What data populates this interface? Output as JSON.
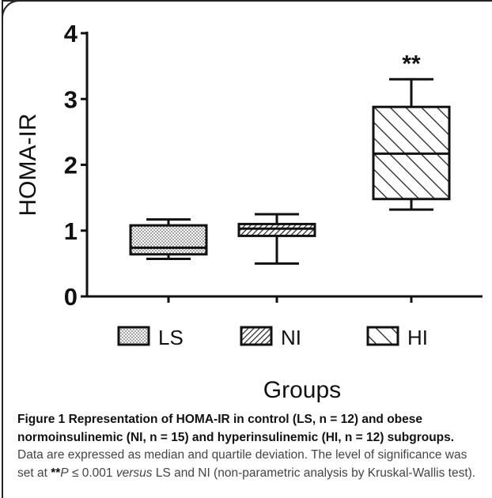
{
  "chart_data": {
    "type": "box",
    "title": "",
    "xlabel": "Groups",
    "ylabel": "HOMA-IR",
    "ylim": [
      0,
      4
    ],
    "yticks": [
      "0",
      "1",
      "2",
      "3",
      "4"
    ],
    "categories": [
      "LS",
      "NI",
      "HI"
    ],
    "boxes": [
      {
        "name": "LS",
        "min": 0.57,
        "q1": 0.64,
        "median": 0.74,
        "q3": 1.08,
        "max": 1.17,
        "pattern": "dots"
      },
      {
        "name": "NI",
        "min": 0.5,
        "q1": 0.92,
        "median": 1.03,
        "q3": 1.1,
        "max": 1.25,
        "pattern": "dense-diagonal"
      },
      {
        "name": "HI",
        "min": 1.32,
        "q1": 1.48,
        "median": 2.17,
        "q3": 2.88,
        "max": 3.3,
        "pattern": "wide-diagonal"
      }
    ],
    "annotations": [
      {
        "category": "HI",
        "text": "**"
      }
    ],
    "legend": {
      "placement": "bottom",
      "entries": [
        "LS",
        "NI",
        "HI"
      ]
    }
  },
  "caption": {
    "figure_label": "Figure 1",
    "title": " Representation of HOMA-IR in control (LS, n = 12) and obese normoinsulinemic (NI, n = 15) and hyperinsulinemic (HI, n = 12) subgroups.",
    "text_1": " Data are expressed as median and quartile deviation. The level of significance was set at ",
    "sig_stars": "**",
    "sig_p": "P",
    "text_2": " ≤ 0.001 ",
    "versus": "versus",
    "text_3": " LS and NI (non-parametric analysis by Kruskal-Wallis test)."
  }
}
